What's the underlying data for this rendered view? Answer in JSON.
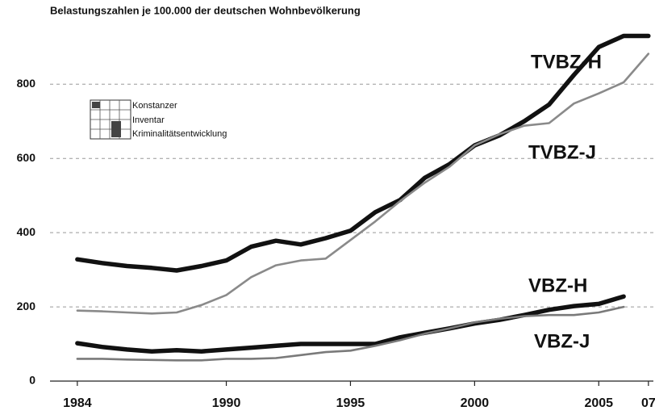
{
  "chart_data": {
    "type": "line",
    "title": "Belastungszahlen je 100.000 der deutschen Wohnbevölkerung",
    "logo": [
      "Konstanzer",
      "Inventar",
      "Kriminalitätsentwicklung"
    ],
    "x": [
      1984,
      1985,
      1986,
      1987,
      1988,
      1989,
      1990,
      1991,
      1992,
      1993,
      1994,
      1995,
      1996,
      1997,
      1998,
      1999,
      2000,
      2001,
      2002,
      2003,
      2004,
      2005,
      2006,
      2007
    ],
    "series": [
      {
        "name": "TVBZ-H",
        "color": "#111111",
        "values": [
          328,
          318,
          310,
          305,
          298,
          310,
          325,
          362,
          378,
          368,
          385,
          405,
          455,
          488,
          548,
          585,
          635,
          662,
          700,
          745,
          825,
          900,
          930,
          930
        ]
      },
      {
        "name": "TVBZ-J",
        "color": "#8a8a8a",
        "values": [
          190,
          188,
          185,
          182,
          185,
          205,
          232,
          280,
          312,
          325,
          330,
          380,
          430,
          485,
          535,
          578,
          635,
          665,
          688,
          695,
          748,
          775,
          805,
          882
        ]
      },
      {
        "name": "VBZ-H",
        "color": "#111111",
        "values": [
          102,
          92,
          85,
          80,
          83,
          80,
          85,
          90,
          95,
          100,
          100,
          100,
          100,
          118,
          130,
          142,
          155,
          165,
          178,
          192,
          202,
          208,
          228,
          null
        ]
      },
      {
        "name": "VBZ-J",
        "color": "#7a7a7a",
        "values": [
          60,
          60,
          58,
          57,
          56,
          56,
          60,
          60,
          62,
          70,
          78,
          82,
          95,
          110,
          128,
          142,
          158,
          168,
          175,
          178,
          178,
          185,
          200,
          null
        ]
      }
    ],
    "xlim": [
      1982.9,
      2007.2
    ],
    "xticks": [
      1984,
      1990,
      1995,
      2000,
      2005,
      {
        "value": 2007,
        "label": "07"
      }
    ],
    "ylim": [
      0,
      955
    ],
    "yticks": [
      0,
      200,
      400,
      600,
      800
    ],
    "grid": true
  }
}
